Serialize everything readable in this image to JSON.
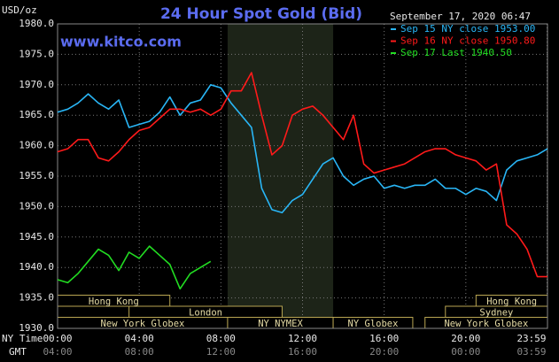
{
  "chart_data": {
    "type": "line",
    "title": "24 Hour Spot Gold (Bid)",
    "y_label": "USD/oz",
    "annotation": "www.kitco.com",
    "timestamp": "September 17, 2020 06:47",
    "x_row_labels": [
      "NY Time",
      "GMT"
    ],
    "x": [
      0,
      0.5,
      1,
      1.5,
      2,
      2.5,
      3,
      3.5,
      4,
      4.5,
      5,
      5.5,
      6,
      6.5,
      7,
      7.5,
      8,
      8.5,
      9,
      9.5,
      10,
      10.5,
      11,
      11.5,
      12,
      12.5,
      13,
      13.5,
      14,
      14.5,
      15,
      15.5,
      16,
      16.5,
      17,
      17.5,
      18,
      18.5,
      19,
      19.5,
      20,
      20.5,
      21,
      21.5,
      22,
      22.5,
      23,
      23.5,
      24
    ],
    "series": [
      {
        "name": "Sep 15 NY close 1953.00",
        "color": "#29b6f6",
        "values": [
          1965.5,
          1966,
          1967,
          1968.5,
          1967,
          1966,
          1967.5,
          1963,
          1963.5,
          1964,
          1965.5,
          1968,
          1965,
          1967,
          1967.5,
          1970,
          1969.5,
          1967,
          1965,
          1963,
          1953,
          1949.5,
          1949,
          1951,
          1952,
          1954.5,
          1957,
          1958,
          1955,
          1953.5,
          1954.5,
          1955,
          1953,
          1953.5,
          1953,
          1953.5,
          1953.5,
          1954.5,
          1953,
          1953,
          1952,
          1953,
          1952.5,
          1951,
          1956,
          1957.5,
          1958,
          1958.5,
          1959.5
        ]
      },
      {
        "name": "Sep 16 NY close 1950.80",
        "color": "#ff1a1a",
        "values": [
          1959,
          1959.5,
          1961,
          1961,
          1958,
          1957.5,
          1959,
          1961,
          1962.5,
          1963,
          1964.5,
          1966,
          1966,
          1965.5,
          1966,
          1965,
          1966,
          1969,
          1969,
          1972,
          1965,
          1958.5,
          1960,
          1965,
          1966,
          1966.5,
          1965,
          1963,
          1961,
          1965,
          1957,
          1955.5,
          1956,
          1956.5,
          1957,
          1958,
          1959,
          1959.5,
          1959.5,
          1958.5,
          1958,
          1957.5,
          1956,
          1957,
          1947,
          1945.5,
          1943,
          1938.5,
          1938.5
        ]
      },
      {
        "name": "Sep 17 Last 1940.50",
        "color": "#22dd22",
        "values": [
          1938,
          1937.5,
          1939,
          1941,
          1943,
          1942,
          1939.5,
          1942.5,
          1941.5,
          1943.5,
          1942,
          1940.5,
          1936.5,
          1939,
          1940,
          1941,
          null,
          null,
          null,
          null,
          null,
          null,
          null,
          null,
          null,
          null,
          null,
          null,
          null,
          null,
          null,
          null,
          null,
          null,
          null,
          null,
          null,
          null,
          null,
          null,
          null,
          null,
          null,
          null,
          null,
          null,
          null,
          null,
          null
        ]
      }
    ],
    "xlim": [
      0,
      24
    ],
    "ylim": [
      1930,
      1980
    ],
    "yticks": [
      {
        "value": 1930,
        "label": "1930.0"
      },
      {
        "value": 1935,
        "label": "1935.0"
      },
      {
        "value": 1940,
        "label": "1940.0"
      },
      {
        "value": 1945,
        "label": "1945.0"
      },
      {
        "value": 1950,
        "label": "1950.0"
      },
      {
        "value": 1955,
        "label": "1955.0"
      },
      {
        "value": 1960,
        "label": "1960.0"
      },
      {
        "value": 1965,
        "label": "1965.0"
      },
      {
        "value": 1970,
        "label": "1970.0"
      },
      {
        "value": 1975,
        "label": "1975.0"
      },
      {
        "value": 1980,
        "label": "1980.0"
      }
    ],
    "xticks": [
      {
        "value": 0,
        "label": "00:00"
      },
      {
        "value": 4,
        "label": "04:00"
      },
      {
        "value": 8,
        "label": "08:00"
      },
      {
        "value": 12,
        "label": "12:00"
      },
      {
        "value": 16,
        "label": "16:00"
      },
      {
        "value": 20,
        "label": "20:00"
      },
      {
        "value": 23.98,
        "label": "23:59"
      }
    ],
    "gmt_labels": [
      "04:00",
      "08:00",
      "12:00",
      "16:00",
      "20:00",
      "00:00",
      "03:59"
    ],
    "shaded_x": [
      8.33,
      13.5
    ],
    "sessions": [
      {
        "label": "Hong Kong",
        "start": 0,
        "end": 5.5,
        "row": 0
      },
      {
        "label": "London",
        "start": 3.5,
        "end": 11,
        "row": 1
      },
      {
        "label": "New York Globex",
        "start": 0,
        "end": 8.33,
        "row": 2
      },
      {
        "label": "NY NYMEX",
        "start": 8.33,
        "end": 13.5,
        "row": 2
      },
      {
        "label": "NY Globex",
        "start": 13.5,
        "end": 17.4,
        "row": 2
      },
      {
        "label": "Hong Kong",
        "start": 20.5,
        "end": 24,
        "row": 0
      },
      {
        "label": "Sydney",
        "start": 19,
        "end": 24,
        "row": 1
      },
      {
        "label": "New York Globex",
        "start": 18,
        "end": 24,
        "row": 2
      }
    ],
    "grid": true
  }
}
